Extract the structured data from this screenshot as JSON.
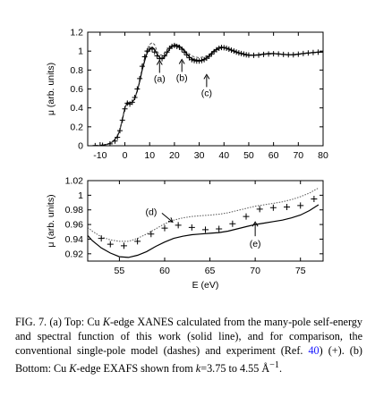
{
  "figure": {
    "chart_data": [
      {
        "type": "line",
        "panel": "top",
        "xlabel": "",
        "ylabel": "μ (arb. units)",
        "xlim": [
          -15,
          80
        ],
        "ylim": [
          0,
          1.2
        ],
        "xticks": [
          "-10",
          "0",
          "10",
          "20",
          "30",
          "40",
          "50",
          "60",
          "70",
          "80"
        ],
        "yticks": [
          "0",
          "0.2",
          "0.4",
          "0.6",
          "0.8",
          "1",
          "1.2"
        ],
        "grid": false,
        "series": [
          {
            "style": "solid",
            "x": [
              -13,
              -10,
              -7,
              -5,
              -3,
              -2,
              -1,
              0,
              1,
              2,
              3,
              4,
              5,
              6,
              7,
              8,
              9,
              10,
              11,
              12,
              13,
              14,
              15,
              16,
              17,
              18,
              19,
              20,
              21,
              22,
              23,
              24,
              25,
              26,
              27,
              28,
              29,
              30,
              31,
              32,
              33,
              34,
              35,
              36,
              37,
              38,
              39,
              40,
              42,
              44,
              46,
              48,
              50,
              52,
              54,
              56,
              58,
              60,
              62,
              64,
              66,
              68,
              70,
              72,
              74,
              76,
              78,
              80
            ],
            "y": [
              0.0,
              0.004,
              0.015,
              0.04,
              0.1,
              0.17,
              0.28,
              0.4,
              0.46,
              0.45,
              0.46,
              0.5,
              0.58,
              0.68,
              0.8,
              0.9,
              0.98,
              1.02,
              1.04,
              1.02,
              0.97,
              0.93,
              0.92,
              0.94,
              0.98,
              1.02,
              1.05,
              1.06,
              1.06,
              1.05,
              1.03,
              1.0,
              0.97,
              0.94,
              0.92,
              0.91,
              0.905,
              0.9,
              0.905,
              0.915,
              0.93,
              0.95,
              0.975,
              1.0,
              1.02,
              1.035,
              1.04,
              1.038,
              1.02,
              1.0,
              0.98,
              0.965,
              0.955,
              0.955,
              0.96,
              0.97,
              0.975,
              0.975,
              0.97,
              0.965,
              0.962,
              0.963,
              0.968,
              0.975,
              0.98,
              0.985,
              0.988,
              0.99
            ]
          },
          {
            "style": "dashed",
            "x": [
              -13,
              -10,
              -7,
              -5,
              -3,
              -2,
              -1,
              0,
              1,
              2,
              3,
              4,
              5,
              6,
              7,
              8,
              9,
              10,
              11,
              12,
              13,
              14,
              15,
              16,
              17,
              18,
              19,
              20,
              21,
              22,
              23,
              24,
              25,
              26,
              27,
              28,
              29,
              30,
              31,
              32,
              33,
              34,
              35,
              36,
              37,
              38,
              39,
              40,
              42,
              44,
              46,
              48,
              50,
              52,
              54,
              56,
              58,
              60,
              62,
              64,
              66,
              68,
              70,
              72,
              74,
              76,
              78,
              80
            ],
            "y": [
              0.0,
              0.004,
              0.015,
              0.04,
              0.1,
              0.17,
              0.28,
              0.4,
              0.46,
              0.45,
              0.46,
              0.5,
              0.59,
              0.7,
              0.83,
              0.93,
              1.02,
              1.07,
              1.09,
              1.07,
              1.0,
              0.96,
              0.96,
              0.98,
              1.01,
              1.04,
              1.06,
              1.07,
              1.07,
              1.06,
              1.04,
              1.01,
              0.99,
              0.97,
              0.95,
              0.94,
              0.935,
              0.93,
              0.935,
              0.94,
              0.95,
              0.965,
              0.985,
              1.01,
              1.03,
              1.04,
              1.045,
              1.042,
              1.025,
              1.005,
              0.985,
              0.97,
              0.96,
              0.96,
              0.965,
              0.972,
              0.977,
              0.977,
              0.972,
              0.967,
              0.964,
              0.965,
              0.97,
              0.977,
              0.982,
              0.987,
              0.99,
              0.992
            ]
          },
          {
            "style": "plus",
            "x": [
              -12,
              -9,
              -6,
              -4,
              -3,
              -2,
              -1,
              0,
              1,
              2,
              3,
              4,
              5,
              6,
              7,
              8,
              9,
              10,
              11,
              12,
              13,
              14,
              15,
              16,
              17,
              18,
              19,
              20,
              21,
              22,
              23,
              24,
              25,
              26,
              27,
              28,
              29,
              30,
              31,
              32,
              33,
              34,
              35,
              36,
              37,
              38,
              39,
              40,
              41,
              42,
              43,
              44,
              45,
              46,
              47,
              48,
              49,
              50,
              52,
              54,
              56,
              58,
              60,
              62,
              64,
              66,
              68,
              70,
              72,
              74,
              76,
              78,
              80
            ],
            "y": [
              0.001,
              0.005,
              0.02,
              0.05,
              0.09,
              0.16,
              0.27,
              0.39,
              0.45,
              0.44,
              0.46,
              0.51,
              0.6,
              0.71,
              0.84,
              0.94,
              1.0,
              1.02,
              1.02,
              0.99,
              0.95,
              0.92,
              0.92,
              0.95,
              0.99,
              1.03,
              1.05,
              1.06,
              1.05,
              1.04,
              1.02,
              0.99,
              0.96,
              0.93,
              0.91,
              0.9,
              0.895,
              0.895,
              0.9,
              0.91,
              0.925,
              0.945,
              0.97,
              0.995,
              1.015,
              1.03,
              1.038,
              1.036,
              1.03,
              1.02,
              1.01,
              1.0,
              0.99,
              0.982,
              0.975,
              0.968,
              0.962,
              0.958,
              0.956,
              0.958,
              0.965,
              0.97,
              0.972,
              0.97,
              0.965,
              0.961,
              0.962,
              0.967,
              0.974,
              0.98,
              0.985,
              0.988,
              0.99
            ]
          }
        ],
        "annotations": [
          {
            "label": "(a)",
            "x": 14,
            "y": 0.77
          },
          {
            "label": "(b)",
            "x": 23,
            "y": 0.78
          },
          {
            "label": "(c)",
            "x": 33,
            "y": 0.62
          }
        ]
      },
      {
        "type": "line",
        "panel": "bottom",
        "xlabel": "E (eV)",
        "ylabel": "μ (arb. units)",
        "xlim": [
          51.5,
          77.5
        ],
        "ylim": [
          0.91,
          1.02
        ],
        "xticks": [
          "55",
          "60",
          "65",
          "70",
          "75"
        ],
        "yticks": [
          "0.92",
          "0.94",
          "0.96",
          "0.98",
          "1",
          "1.02"
        ],
        "grid": false,
        "series": [
          {
            "style": "solid",
            "x": [
              51.5,
              52,
              53,
              54,
              55,
              56,
              57,
              58,
              59,
              60,
              61,
              62,
              63,
              64,
              65,
              66,
              67,
              68,
              69,
              70,
              71,
              72,
              73,
              74,
              75,
              76,
              77
            ],
            "y": [
              0.945,
              0.938,
              0.928,
              0.921,
              0.916,
              0.915,
              0.918,
              0.923,
              0.93,
              0.936,
              0.941,
              0.944,
              0.946,
              0.947,
              0.948,
              0.949,
              0.951,
              0.954,
              0.957,
              0.96,
              0.962,
              0.964,
              0.966,
              0.969,
              0.973,
              0.979,
              0.987
            ]
          },
          {
            "style": "dotted",
            "x": [
              51.5,
              52,
              53,
              54,
              55,
              56,
              57,
              58,
              59,
              60,
              61,
              62,
              63,
              64,
              65,
              66,
              67,
              68,
              69,
              70,
              71,
              72,
              73,
              74,
              75,
              76,
              77
            ],
            "y": [
              0.956,
              0.951,
              0.943,
              0.939,
              0.937,
              0.937,
              0.941,
              0.947,
              0.954,
              0.961,
              0.966,
              0.969,
              0.971,
              0.972,
              0.973,
              0.974,
              0.976,
              0.979,
              0.982,
              0.985,
              0.987,
              0.989,
              0.991,
              0.994,
              0.998,
              1.003,
              1.01
            ]
          },
          {
            "style": "plus",
            "x": [
              53,
              54,
              55.5,
              57,
              58.5,
              60,
              61.5,
              63,
              64.5,
              66,
              67.5,
              69,
              70.5,
              72,
              73.5,
              75,
              76.5
            ],
            "y": [
              0.941,
              0.933,
              0.931,
              0.937,
              0.947,
              0.955,
              0.959,
              0.956,
              0.953,
              0.954,
              0.961,
              0.971,
              0.981,
              0.983,
              0.984,
              0.986,
              0.995
            ]
          }
        ],
        "annotations": [
          {
            "label": "(d)",
            "x": 59.5,
            "y": 0.978
          },
          {
            "label": "(e)",
            "x": 70,
            "y": 0.944
          }
        ]
      }
    ]
  },
  "caption": {
    "part1": "FIG. 7. (a) Top: Cu ",
    "k1": "K",
    "part2": "-edge XANES calculated from the many-pole self-energy and spectral function of this work (solid line), and for comparison, the conventional single-pole model (dashes) and experiment (Ref. ",
    "ref": "40",
    "part3": ") (+). (b) Bottom: Cu ",
    "k2": "K",
    "part4": "-edge EXAFS shown from ",
    "kvar": "k",
    "part5": "=3.75  to 4.55 Å",
    "sup": "−1",
    "part6": "."
  }
}
